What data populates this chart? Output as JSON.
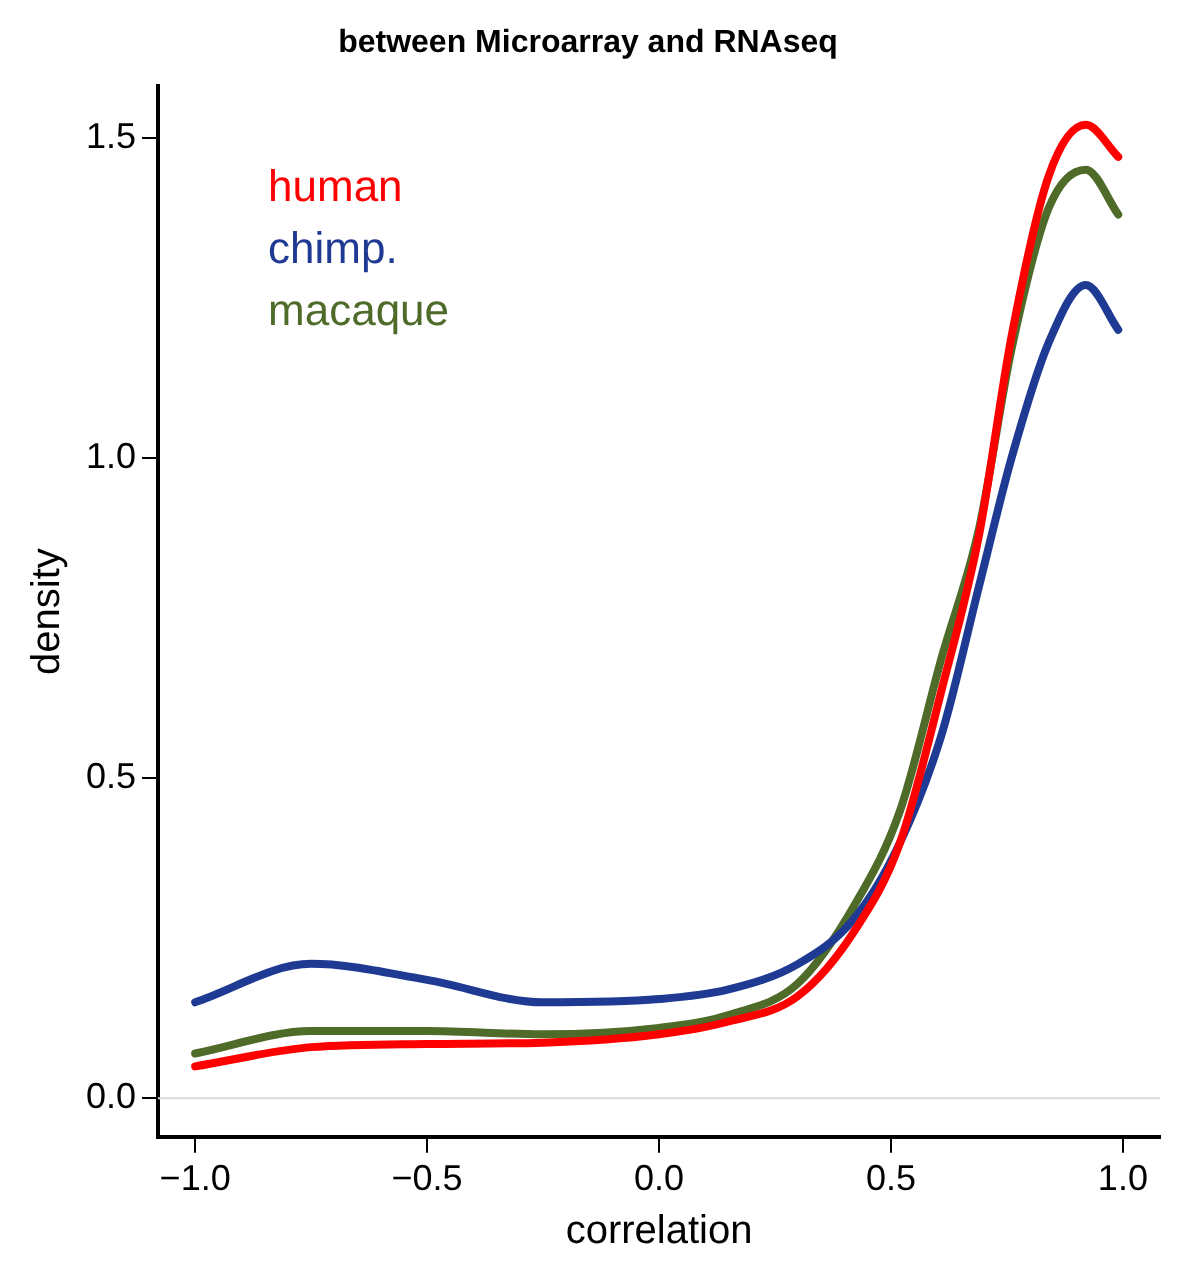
{
  "chart_data": {
    "type": "line",
    "title": "between Microarray and RNAseq",
    "xlabel": "correlation",
    "ylabel": "density",
    "x": [
      -1,
      -0.75,
      -0.5,
      -0.25,
      0,
      0.15,
      0.3,
      0.42,
      0.52,
      0.61,
      0.69,
      0.76,
      0.84,
      0.92,
      0.99
    ],
    "series": [
      {
        "name": "human",
        "color": "#ff0000",
        "values": [
          0.05,
          0.08,
          0.085,
          0.087,
          0.1,
          0.12,
          0.16,
          0.26,
          0.4,
          0.64,
          0.88,
          1.19,
          1.44,
          1.52,
          1.47
        ]
      },
      {
        "name": "chimp.",
        "color": "#1f3a93",
        "values": [
          0.15,
          0.21,
          0.185,
          0.15,
          0.155,
          0.17,
          0.21,
          0.28,
          0.4,
          0.57,
          0.8,
          1.0,
          1.18,
          1.27,
          1.2
        ]
      },
      {
        "name": "macaque",
        "color": "#4f6b2a",
        "values": [
          0.07,
          0.105,
          0.105,
          0.1,
          0.11,
          0.13,
          0.18,
          0.3,
          0.45,
          0.69,
          0.89,
          1.17,
          1.39,
          1.45,
          1.38
        ]
      }
    ],
    "xlim": [
      -1.08,
      1.08
    ],
    "xticks": [
      {
        "value": -1,
        "label": "−1.0"
      },
      {
        "value": -0.5,
        "label": "−0.5"
      },
      {
        "value": 0,
        "label": "0.0"
      },
      {
        "value": 0.5,
        "label": "0.5"
      },
      {
        "value": 1,
        "label": "1.0"
      }
    ],
    "ylim": [
      -0.06,
      1.58
    ],
    "yticks": [
      {
        "value": 0,
        "label": "0.0"
      },
      {
        "value": 0.5,
        "label": "0.5"
      },
      {
        "value": 1,
        "label": "1.0"
      },
      {
        "value": 1.5,
        "label": "1.5"
      }
    ],
    "ref_lines": [
      {
        "axis": "y",
        "value": 0,
        "color": "#d9d9d9"
      }
    ],
    "legend": "top left",
    "grid": false,
    "marker": "none",
    "line_style": "solid"
  }
}
